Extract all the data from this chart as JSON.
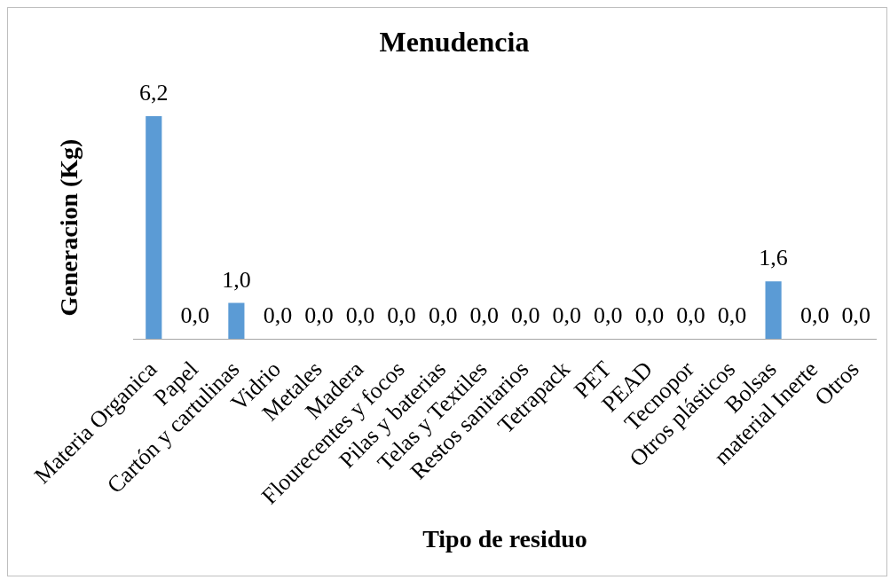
{
  "chart_data": {
    "type": "bar",
    "title": "Menudencia",
    "xlabel": "Tipo de residuo",
    "ylabel": "Generacion (Kg)",
    "categories": [
      "Materia Organica",
      "Papel",
      "Cartón y cartulinas",
      "Vidrio",
      "Metales",
      "Madera",
      "Flourecentes y focos",
      "Pilas y baterias",
      "Telas y Textiles",
      "Restos sanitarios",
      "Tetrapack",
      "PET",
      "PEAD",
      "Tecnopor",
      "Otros plásticos",
      "Bolsas",
      "material Inerte",
      "Otros"
    ],
    "values": [
      6.2,
      0,
      1.0,
      0,
      0,
      0,
      0,
      0,
      0,
      0,
      0,
      0,
      0,
      0,
      0,
      1.6,
      0,
      0
    ],
    "color": "#5b9bd5",
    "value_labels": [
      "6,2",
      "0,0",
      "1,0",
      "0,0",
      "0,0",
      "0,0",
      "0,0",
      "0,0",
      "0,0",
      "0,0",
      "0,0",
      "0,0",
      "0,0",
      "0,0",
      "0,0",
      "1,6",
      "0,0",
      "0,0"
    ]
  }
}
